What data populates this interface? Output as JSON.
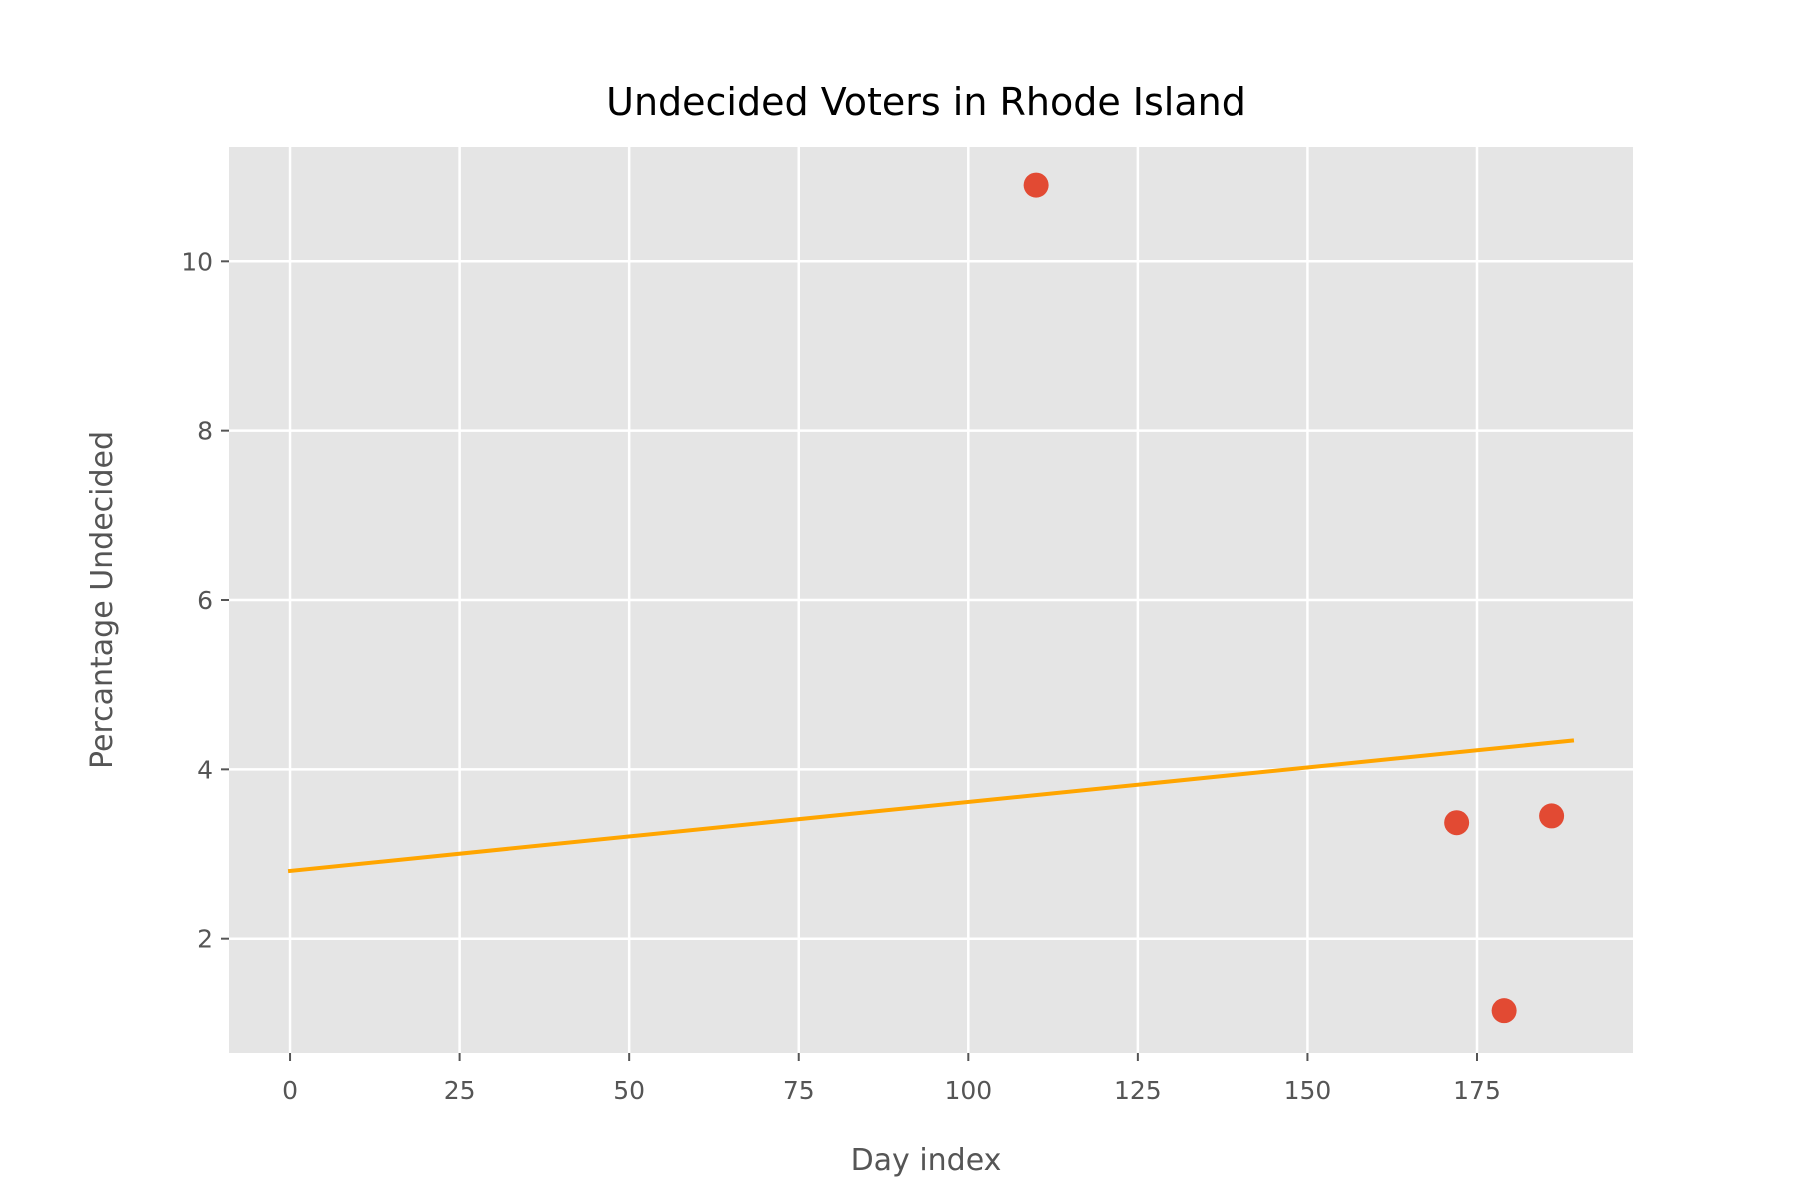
{
  "chart_data": {
    "type": "scatter",
    "title": "Undecided Voters in Rhode Island",
    "xlabel": "Day index",
    "ylabel": "Percantage Undecided",
    "xlim": [
      -9,
      198
    ],
    "ylim": [
      0.65,
      11.35
    ],
    "xticks": [
      0,
      25,
      50,
      75,
      100,
      125,
      150,
      175
    ],
    "yticks": [
      2,
      4,
      6,
      8,
      10
    ],
    "grid": true,
    "points": [
      {
        "x": 110,
        "y": 10.9
      },
      {
        "x": 172,
        "y": 3.37
      },
      {
        "x": 179,
        "y": 1.15
      },
      {
        "x": 186,
        "y": 3.45
      }
    ],
    "trend_line": {
      "x": [
        0,
        189
      ],
      "y": [
        2.8,
        4.34
      ]
    },
    "colors": {
      "background": "#e5e5e5",
      "grid": "#ffffff",
      "points": "#e24a33",
      "trend_line": "#ffa500"
    }
  }
}
